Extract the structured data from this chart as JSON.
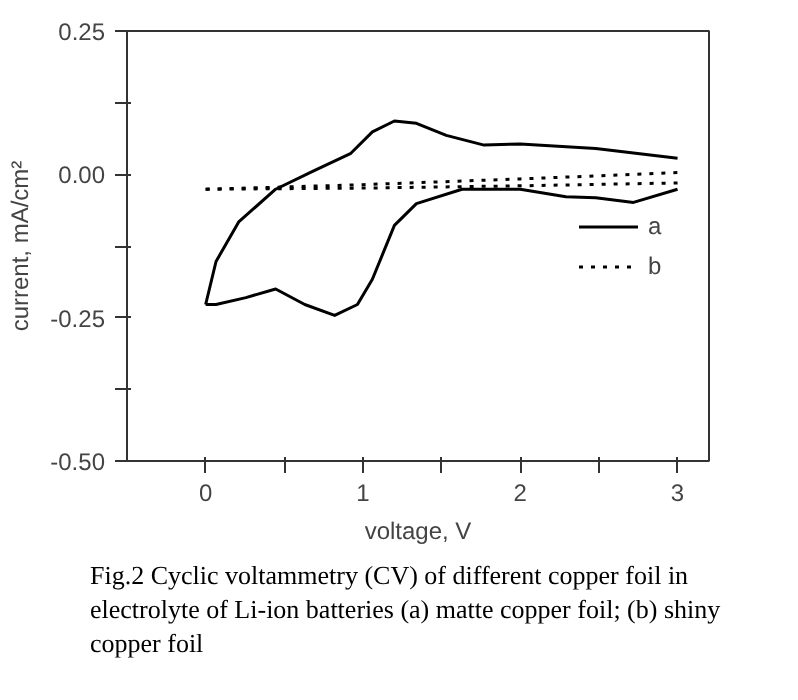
{
  "chart_data": {
    "type": "line",
    "xlabel": "voltage, V",
    "ylabel": "current, mA/cm²",
    "xlim": [
      -0.5,
      3.2
    ],
    "ylim": [
      -0.5,
      0.25
    ],
    "xticks": [
      0,
      {
        "value": 0.5,
        "label": null
      },
      1,
      {
        "value": 1.5,
        "label": null
      },
      2,
      {
        "value": 2.5,
        "label": null
      },
      3
    ],
    "yticks": [
      {
        "value": -0.5,
        "label": "-0.50"
      },
      {
        "value": -0.375,
        "label": null
      },
      {
        "value": -0.25,
        "label": "-0.25"
      },
      {
        "value": -0.125,
        "label": null
      },
      {
        "value": 0,
        "label": "0.00"
      },
      {
        "value": 0.125,
        "label": null
      },
      {
        "value": 0.25,
        "label": "0.25"
      }
    ],
    "grid": false,
    "legend": "right",
    "marker": "none",
    "series": [
      {
        "name": "a",
        "color": "#000000",
        "line_style": "solid",
        "x": [
          0,
          0.066,
          0.21,
          0.445,
          0.68,
          0.92,
          1.06,
          1.2,
          1.34,
          1.53,
          1.77,
          2.0,
          2.48,
          3.0
        ],
        "values": [
          -0.227,
          -0.152,
          -0.083,
          -0.026,
          0.005,
          0.036,
          0.074,
          0.093,
          0.089,
          0.068,
          0.051,
          0.053,
          0.045,
          0.028
        ]
      },
      {
        "color": "#000000",
        "line_style": "solid",
        "x": [
          0,
          0.066,
          0.256,
          0.445,
          0.63,
          0.82,
          0.965,
          1.06,
          1.2,
          1.34,
          1.63,
          2.0,
          2.29,
          2.48,
          2.72,
          3.0
        ],
        "values": [
          -0.227,
          -0.227,
          -0.215,
          -0.2,
          -0.227,
          -0.246,
          -0.227,
          -0.183,
          -0.089,
          -0.051,
          -0.026,
          -0.026,
          -0.039,
          -0.041,
          -0.049,
          -0.026
        ]
      },
      {
        "name": "b",
        "color": "#000000",
        "line_style": "dotted",
        "x": [
          0,
          1,
          2,
          3
        ],
        "values": [
          -0.026,
          -0.018,
          -0.008,
          0.003
        ]
      },
      {
        "color": "#000000",
        "line_style": "dotted",
        "x": [
          0,
          1,
          2,
          3
        ],
        "values": [
          -0.026,
          -0.024,
          -0.02,
          -0.015
        ]
      }
    ],
    "annotations": [
      "Fig.2 Cyclic voltammetry (CV) of different copper foil in electrolyte of Li-ion batteries (a) matte copper foil; (b) shiny copper foil"
    ]
  }
}
